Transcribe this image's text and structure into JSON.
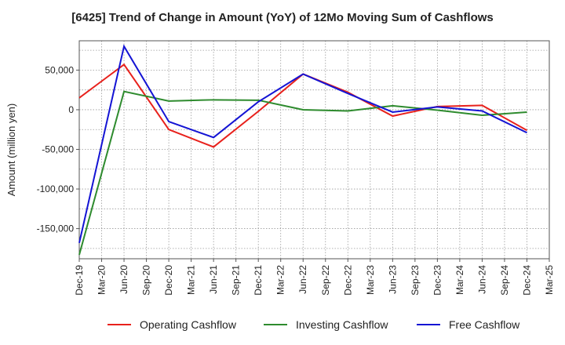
{
  "chart_data": {
    "type": "line",
    "title": "[6425]  Trend of Change in Amount (YoY) of 12Mo Moving Sum of Cashflows",
    "xlabel": "",
    "ylabel": "Amount (million yen)",
    "ylim": [
      -188000,
      87000
    ],
    "yticks": [
      50000,
      0,
      -50000,
      -100000,
      -150000
    ],
    "ytick_labels": [
      "50,000",
      "0",
      "-50,000",
      "-100,000",
      "-150,000"
    ],
    "categories": [
      "Dec-19",
      "Mar-20",
      "Jun-20",
      "Sep-20",
      "Dec-20",
      "Mar-21",
      "Jun-21",
      "Sep-21",
      "Dec-21",
      "Mar-22",
      "Jun-22",
      "Sep-22",
      "Dec-22",
      "Mar-23",
      "Jun-23",
      "Sep-23",
      "Dec-23",
      "Mar-24",
      "Jun-24",
      "Sep-24",
      "Dec-24",
      "Mar-25"
    ],
    "grid": true,
    "legend_position": "bottom",
    "series": [
      {
        "name": "Operating Cashflow",
        "color": "#e8211c",
        "x": [
          "Dec-19",
          "Jun-20",
          "Dec-20",
          "Jun-21",
          "Dec-21",
          "Jun-22",
          "Dec-22",
          "Jun-23",
          "Dec-23",
          "Jun-24",
          "Dec-24"
        ],
        "values": [
          15000,
          57000,
          -25000,
          -47000,
          -2000,
          45000,
          22000,
          -8000,
          4000,
          5500,
          -26000
        ]
      },
      {
        "name": "Investing Cashflow",
        "color": "#2e8b2e",
        "x": [
          "Dec-19",
          "Jun-20",
          "Dec-20",
          "Jun-21",
          "Dec-21",
          "Jun-22",
          "Dec-22",
          "Jun-23",
          "Dec-23",
          "Jun-24",
          "Dec-24"
        ],
        "values": [
          -183000,
          23000,
          11000,
          12500,
          12000,
          0,
          -1500,
          5000,
          -500,
          -7000,
          -3000
        ]
      },
      {
        "name": "Free Cashflow",
        "color": "#1414d4",
        "x": [
          "Dec-19",
          "Jun-20",
          "Dec-20",
          "Jun-21",
          "Dec-21",
          "Jun-22",
          "Dec-22",
          "Jun-23",
          "Dec-23",
          "Jun-24",
          "Dec-24"
        ],
        "values": [
          -168000,
          80000,
          -15000,
          -35000,
          10000,
          45000,
          20500,
          -3000,
          3500,
          -1500,
          -29000
        ]
      }
    ]
  }
}
